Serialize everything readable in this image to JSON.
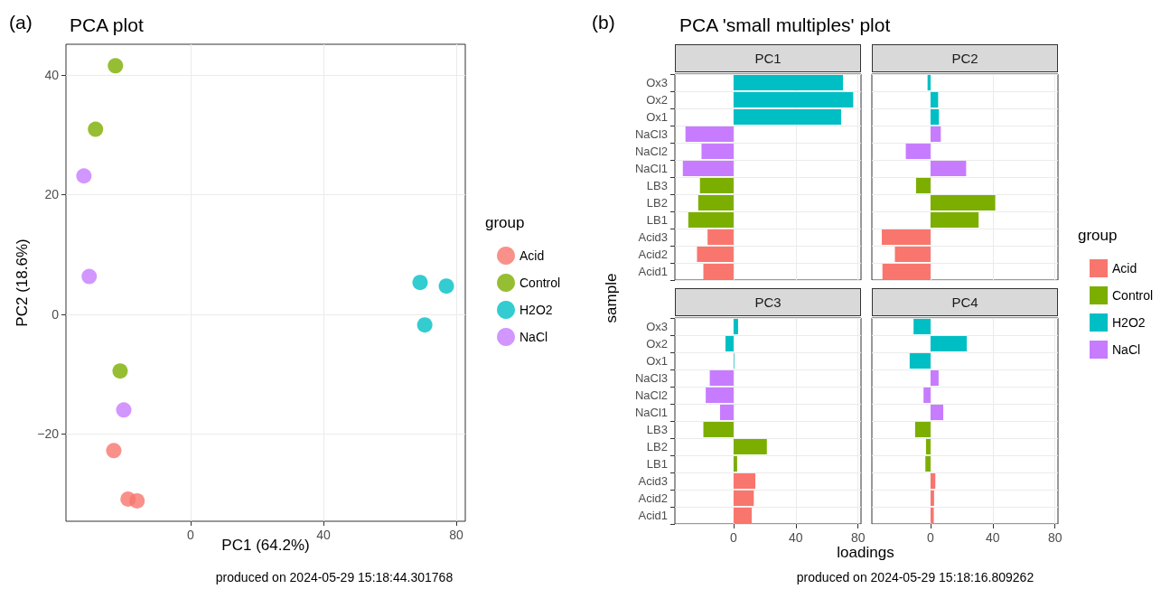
{
  "chart_data": [
    {
      "type": "scatter",
      "title": "PCA plot",
      "xlabel": "PC1 (64.2%)",
      "ylabel": "PC2 (18.6%)",
      "legend_title": "group",
      "legend": "right",
      "grid": true,
      "marker": "circle",
      "xlim": [
        -37.5,
        82.7
      ],
      "ylim": [
        -34.6,
        45.1
      ],
      "xticks": [
        0,
        40,
        80
      ],
      "yticks": [
        {
          "value": -20,
          "label": "−20"
        },
        0,
        20,
        40
      ],
      "annotations": [
        "(a)",
        "produced on 2024-05-29 15:18:44.301768"
      ],
      "series": [
        {
          "name": "Acid",
          "color": "#f8766d",
          "x": [
            -23.1,
            -18.8,
            -16.1
          ],
          "values": [
            -22.8,
            -30.9,
            -31.2
          ]
        },
        {
          "name": "Control",
          "color": "#7cae00",
          "x": [
            -22.6,
            -28.6,
            -21.2
          ],
          "values": [
            41.5,
            30.9,
            -9.5
          ]
        },
        {
          "name": "H2O2",
          "color": "#00bfc4",
          "x": [
            69.1,
            77.0,
            70.5
          ],
          "values": [
            5.3,
            4.7,
            -1.8
          ]
        },
        {
          "name": "NaCl",
          "color": "#c77cff",
          "x": [
            -32.1,
            -30.5,
            -20.1
          ],
          "values": [
            23.1,
            6.3,
            -16.0
          ]
        }
      ]
    },
    {
      "type": "bar",
      "orientation": "horizontal",
      "title": "PCA 'small multiples' plot",
      "subtitle": "PC1",
      "ylabel": "sample",
      "grid": true,
      "tick_labels": "y",
      "annotations": [
        "(b)",
        "produced on 2024-05-29 15:18:16.809262"
      ],
      "categories": [
        "Ox3",
        "Ox2",
        "Ox1",
        "NaCl3",
        "NaCl2",
        "NaCl1",
        "LB3",
        "LB2",
        "LB1",
        "Acid3",
        "Acid2",
        "Acid1"
      ],
      "xlim": [
        -37.7,
        81.9
      ],
      "xticks": [
        0,
        40,
        80
      ],
      "series": [
        {
          "color": "#f8766d",
          "values": [
            null,
            null,
            null,
            null,
            null,
            null,
            null,
            null,
            null,
            -16.7,
            -23.5,
            -19.4
          ]
        },
        {
          "color": "#7cae00",
          "values": [
            null,
            null,
            null,
            null,
            null,
            null,
            -21.6,
            -22.7,
            -29.1,
            null,
            null,
            null
          ]
        },
        {
          "color": "#00bfc4",
          "values": [
            70.3,
            76.9,
            69.1,
            null,
            null,
            null,
            null,
            null,
            null,
            null,
            null,
            null
          ]
        },
        {
          "color": "#c77cff",
          "values": [
            null,
            null,
            null,
            -30.9,
            -20.6,
            -32.6,
            null,
            null,
            null,
            null,
            null,
            null
          ]
        }
      ]
    },
    {
      "type": "bar",
      "orientation": "horizontal",
      "subtitle": "PC2",
      "grid": true,
      "tick_labels": false,
      "legend": "right",
      "legend_title": "group",
      "categories": [
        null,
        null,
        null,
        null,
        null,
        null,
        null,
        null,
        null,
        null,
        null,
        null
      ],
      "xlim": [
        -37.7,
        81.9
      ],
      "xticks": [
        0,
        40,
        80
      ],
      "series": [
        {
          "name": "Acid",
          "color": "#f8766d",
          "values": [
            null,
            null,
            null,
            null,
            null,
            null,
            null,
            null,
            null,
            -31.3,
            -22.9,
            -30.9
          ]
        },
        {
          "name": "Control",
          "color": "#7cae00",
          "values": [
            null,
            null,
            null,
            null,
            null,
            null,
            -9.3,
            41.6,
            30.9,
            null,
            null,
            null
          ]
        },
        {
          "name": "H2O2",
          "color": "#00bfc4",
          "values": [
            -1.9,
            4.9,
            5.4,
            null,
            null,
            null,
            null,
            null,
            null,
            null,
            null,
            null
          ]
        },
        {
          "name": "NaCl",
          "color": "#c77cff",
          "values": [
            null,
            null,
            null,
            6.6,
            -15.9,
            22.9,
            null,
            null,
            null,
            null,
            null,
            null
          ]
        }
      ]
    },
    {
      "type": "bar",
      "orientation": "horizontal",
      "subtitle": "PC3",
      "xlabel": "loadings",
      "grid": true,
      "categories": [
        "Ox3",
        "Ox2",
        "Ox1",
        "NaCl3",
        "NaCl2",
        "NaCl1",
        "LB3",
        "LB2",
        "LB1",
        "Acid3",
        "Acid2",
        "Acid1"
      ],
      "xlim": [
        -37.7,
        81.9
      ],
      "xticks": [
        0,
        40,
        80
      ],
      "series": [
        {
          "color": "#f8766d",
          "values": [
            null,
            null,
            null,
            null,
            null,
            null,
            null,
            null,
            null,
            14.0,
            13.0,
            11.7
          ]
        },
        {
          "color": "#7cae00",
          "values": [
            null,
            null,
            null,
            null,
            null,
            null,
            -19.4,
            21.4,
            2.3,
            null,
            null,
            null
          ]
        },
        {
          "color": "#00bfc4",
          "values": [
            2.9,
            -5.2,
            0.4,
            null,
            null,
            null,
            null,
            null,
            null,
            null,
            null,
            null
          ]
        },
        {
          "color": "#c77cff",
          "values": [
            null,
            null,
            null,
            -15.3,
            -17.9,
            -8.7,
            null,
            null,
            null,
            null,
            null,
            null
          ]
        }
      ]
    },
    {
      "type": "bar",
      "orientation": "horizontal",
      "subtitle": "PC4",
      "grid": true,
      "tick_labels": "x",
      "categories": [
        null,
        null,
        null,
        null,
        null,
        null,
        null,
        null,
        null,
        null,
        null,
        null
      ],
      "xlim": [
        -37.7,
        81.9
      ],
      "xticks": [
        0,
        40,
        80
      ],
      "series": [
        {
          "color": "#f8766d",
          "values": [
            null,
            null,
            null,
            null,
            null,
            null,
            null,
            null,
            null,
            3.1,
            2.3,
            2.1
          ]
        },
        {
          "color": "#7cae00",
          "values": [
            null,
            null,
            null,
            null,
            null,
            null,
            -9.9,
            -2.9,
            -3.3,
            null,
            null,
            null
          ]
        },
        {
          "color": "#00bfc4",
          "values": [
            -10.9,
            23.3,
            -13.4,
            null,
            null,
            null,
            null,
            null,
            null,
            null,
            null,
            null
          ]
        },
        {
          "color": "#c77cff",
          "values": [
            null,
            null,
            null,
            5.2,
            -4.5,
            8.2,
            null,
            null,
            null,
            null,
            null,
            null
          ]
        }
      ]
    }
  ]
}
